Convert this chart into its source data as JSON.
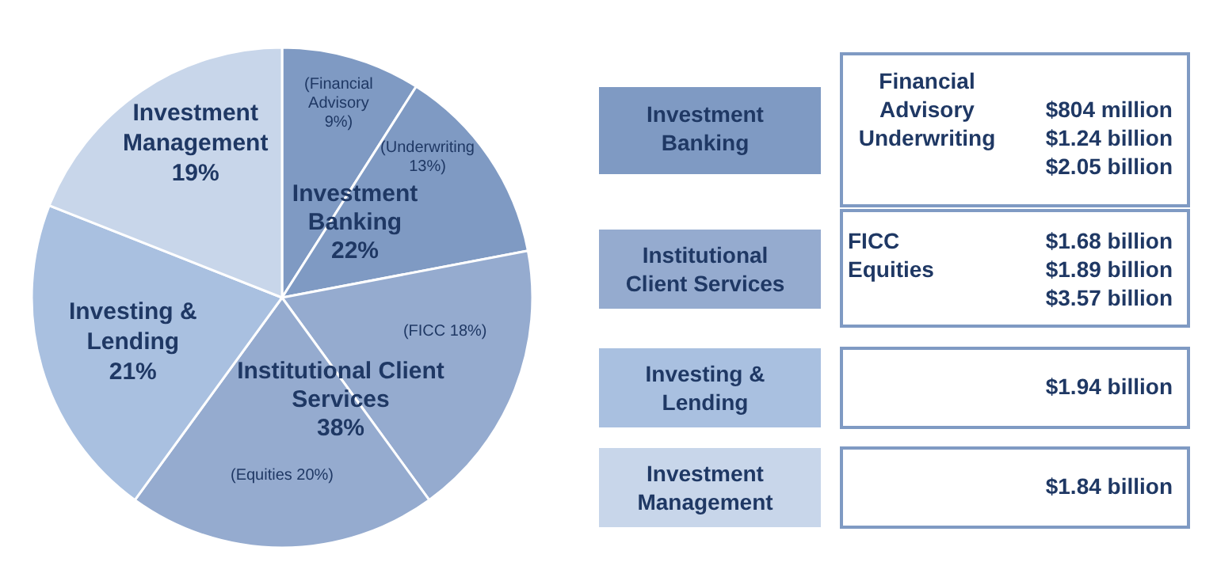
{
  "chart_data": {
    "type": "pie",
    "categories": [
      "(Financial\nAdvisory\n9%)",
      "(Underwriting\n13%)",
      "(FICC 18%)",
      "(Equities 20%)",
      "Investing &\nLending\n21%",
      "Investment\nManagement\n19%"
    ],
    "values": [
      9,
      13,
      18,
      20,
      21,
      19
    ],
    "colors": [
      "#7f9ac3",
      "#7f9ac3",
      "#95abcf",
      "#95abcf",
      "#a9c0e0",
      "#c8d6ea"
    ],
    "annotations": [
      "Investment\nBanking\n22%",
      "Institutional Client\nServices\n38%",
      "Investment\nBanking",
      "Financial\nAdvisory\nUnderwriting",
      "$804 million\n$1.24 billion\n$2.05 billion",
      "Institutional\nClient Services",
      "FICC\nEquities",
      "$1.68 billion\n$1.89 billion\n$3.57 billion",
      "Investing &\nLending",
      "$1.94 billion",
      "Investment\nManagement",
      "$1.84 billion"
    ]
  }
}
